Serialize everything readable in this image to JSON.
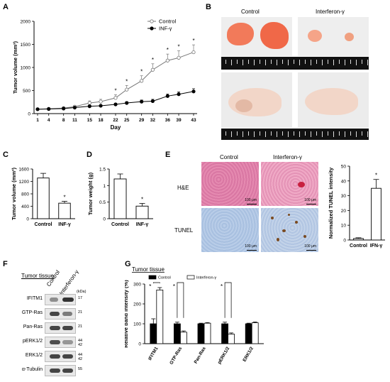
{
  "panels": {
    "a": "A",
    "b": "B",
    "c": "C",
    "d": "D",
    "e": "E",
    "f": "F",
    "g": "G"
  },
  "panel_b": {
    "control": "Control",
    "ifn": "Interferon-γ"
  },
  "panel_e": {
    "control": "Control",
    "ifn": "Interferon-γ",
    "he": "H&E",
    "tunel": "TUNEL",
    "scale": "100 μm"
  },
  "panel_f": {
    "title": "Tumor tissue",
    "lane1": "Control",
    "lane2": "Interferon-γ",
    "kda": "(kDa)"
  },
  "chart_data": [
    {
      "type": "line",
      "ylabel": "Tumor volume (mm³)",
      "xlabel": "Day",
      "x": [
        1,
        4,
        8,
        11,
        15,
        18,
        22,
        25,
        29,
        32,
        36,
        39,
        43
      ],
      "ylim": [
        0,
        2000
      ],
      "yticks": [
        0,
        500,
        1000,
        1500,
        2000
      ],
      "series": [
        {
          "name": "Control",
          "values": [
            95,
            105,
            120,
            150,
            230,
            260,
            340,
            520,
            710,
            950,
            1150,
            1210,
            1330
          ],
          "err": [
            10,
            12,
            15,
            25,
            45,
            50,
            70,
            90,
            110,
            130,
            140,
            150,
            160
          ]
        },
        {
          "name": "INF-γ",
          "values": [
            95,
            100,
            110,
            130,
            160,
            170,
            200,
            230,
            260,
            270,
            380,
            420,
            480
          ],
          "err": [
            10,
            10,
            12,
            15,
            20,
            20,
            25,
            30,
            35,
            40,
            45,
            50,
            60
          ]
        }
      ],
      "sig": [
        "*",
        "*",
        "*",
        "*",
        "*",
        "*",
        "*"
      ],
      "legend": "top-right"
    },
    {
      "type": "bar",
      "ylabel": "Tumor volume (mm³)",
      "categories": [
        "Control",
        "INF-γ"
      ],
      "values": [
        1310,
        500
      ],
      "err": [
        150,
        60
      ],
      "ylim": [
        0,
        1600
      ],
      "yticks": [
        0,
        400,
        800,
        1200,
        1600
      ],
      "sig": "*"
    },
    {
      "type": "bar",
      "ylabel": "Tumor weight (g)",
      "categories": [
        "Control",
        "INF-γ"
      ],
      "values": [
        1.2,
        0.38
      ],
      "err": [
        0.15,
        0.08
      ],
      "ylim": [
        0,
        1.5
      ],
      "yticks": [
        0,
        0.5,
        1.0,
        1.5
      ],
      "sig": "*"
    },
    {
      "type": "bar",
      "ylabel": "Normalized TUNEL intensity",
      "categories": [
        "Control",
        "IFN-γ"
      ],
      "values": [
        1,
        35
      ],
      "err": [
        0.5,
        6
      ],
      "ylim": [
        0,
        50
      ],
      "yticks": [
        0,
        10,
        20,
        30,
        40,
        50
      ],
      "sig": "*"
    },
    {
      "type": "bar",
      "title": "Tumor tissue",
      "ylabel": "Relative band intensity (%)",
      "categories": [
        "IFITM1",
        "GTP-Ras",
        "Pan-Ras",
        "pERK1/2",
        "ERK1/2"
      ],
      "ylim": [
        0,
        300
      ],
      "yticks": [
        0,
        100,
        200,
        300
      ],
      "series": [
        {
          "name": "Control",
          "values": [
            100,
            100,
            100,
            100,
            100
          ],
          "err": [
            25,
            8,
            3,
            8,
            3
          ]
        },
        {
          "name": "Interferon-γ",
          "values": [
            270,
            58,
            103,
            48,
            105
          ],
          "err": [
            12,
            6,
            3,
            6,
            4
          ]
        }
      ],
      "sig": [
        "*",
        "*",
        "",
        "*",
        ""
      ]
    }
  ],
  "western_blot": [
    {
      "name": "IFITM1",
      "kda": "17"
    },
    {
      "name": "GTP-Ras",
      "kda": "21"
    },
    {
      "name": "Pan-Ras",
      "kda": "21"
    },
    {
      "name": "pERK1/2",
      "kda": "44\n42"
    },
    {
      "name": "ERK1/2",
      "kda": "44\n42"
    },
    {
      "name": "α-Tubulin",
      "kda": "55"
    }
  ]
}
